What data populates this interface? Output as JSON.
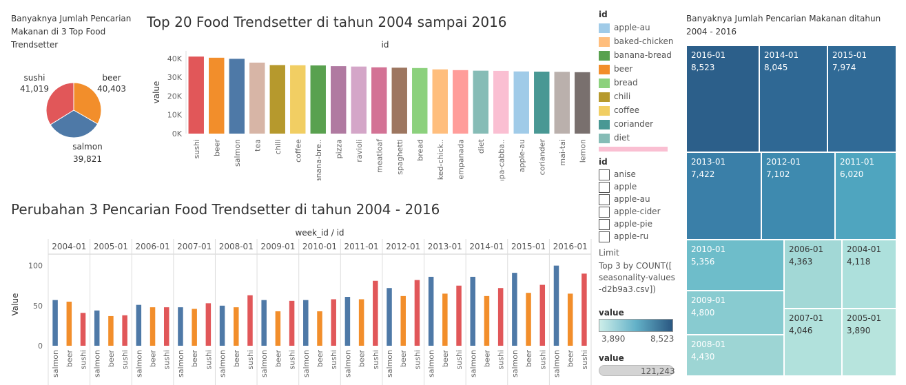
{
  "pie_title": "Banyaknya Jumlah Pencarian Makanan di 3 Top Food Trendsetter",
  "bar_title": "Top 20 Food Trendsetter di tahun 2004 sampai 2016",
  "grouped_title": "Perubahan 3 Pencarian Food Trendsetter di tahun 2004 - 2016",
  "treemap_title": "Banyaknya Jumlah Pencarian Makanan ditahun 2004 - 2016",
  "colors": {
    "salmon": "#4e79a7",
    "beer": "#f28e2b",
    "sushi": "#e15759"
  },
  "legend": {
    "title": "id",
    "items": [
      {
        "label": "apple-au",
        "color": "#a0cbe8"
      },
      {
        "label": "baked-chicken",
        "color": "#ffbe7d"
      },
      {
        "label": "banana-bread",
        "color": "#59a14f"
      },
      {
        "label": "beer",
        "color": "#f28e2b"
      },
      {
        "label": "bread",
        "color": "#8cd17d"
      },
      {
        "label": "chili",
        "color": "#b6992d"
      },
      {
        "label": "coffee",
        "color": "#f1ce63"
      },
      {
        "label": "coriander",
        "color": "#499894"
      },
      {
        "label": "diet",
        "color": "#86bcb6"
      }
    ]
  },
  "filter": {
    "title": "id",
    "items": [
      "anise",
      "apple",
      "apple-au",
      "apple-cider",
      "apple-pie",
      "apple-ru"
    ]
  },
  "limit": {
    "label": "Limit",
    "text": "Top 3 by COUNT([ seasonality-values-d2b9a3.csv])"
  },
  "value_legend": {
    "title": "value",
    "min": "3,890",
    "max": "8,523"
  },
  "value_slider": {
    "title": "value",
    "value": "121,243"
  },
  "chart_data": [
    {
      "type": "pie",
      "slices": [
        {
          "label": "sushi",
          "value": 41019,
          "display": "41,019",
          "color": "#e15759"
        },
        {
          "label": "beer",
          "value": 40403,
          "display": "40,403",
          "color": "#f28e2b"
        },
        {
          "label": "salmon",
          "value": 39821,
          "display": "39,821",
          "color": "#4e79a7"
        }
      ]
    },
    {
      "type": "bar",
      "xlabel": "id",
      "ylabel": "value",
      "ylim": [
        0,
        40000
      ],
      "yticks": [
        0,
        10000,
        20000,
        30000,
        40000
      ],
      "ytick_labels": [
        "0K",
        "10K",
        "20K",
        "30K",
        "40K"
      ],
      "categories": [
        "sushi",
        "beer",
        "salmon",
        "tea",
        "chili",
        "coffee",
        "banana-bre..",
        "pizza",
        "ravioli",
        "meatloaf",
        "spaghetti",
        "bread",
        "baked-chick..",
        "empanada",
        "diet",
        "napa-cabba..",
        "apple-au",
        "coriander",
        "mai-tai",
        "lemon"
      ],
      "values": [
        41019,
        40403,
        39821,
        37800,
        36500,
        36400,
        36300,
        35900,
        35700,
        35300,
        35100,
        34900,
        34200,
        33800,
        33500,
        33400,
        33100,
        33000,
        32900,
        32700
      ],
      "colors": [
        "#e15759",
        "#f28e2b",
        "#4e79a7",
        "#d7b5a6",
        "#b6992d",
        "#f1ce63",
        "#59a14f",
        "#b07aa1",
        "#d4a6c8",
        "#d37295",
        "#9d7660",
        "#8cd17d",
        "#ffbe7d",
        "#ff9d9a",
        "#86bcb6",
        "#fabfd2",
        "#a0cbe8",
        "#499894",
        "#bab0ac",
        "#79706e"
      ]
    },
    {
      "type": "bar",
      "header": "week_id / id",
      "ylabel": "Value",
      "ylim": [
        0,
        110
      ],
      "yticks": [
        0,
        50,
        100
      ],
      "groups": [
        "2004-01",
        "2005-01",
        "2006-01",
        "2007-01",
        "2008-01",
        "2009-01",
        "2010-01",
        "2011-01",
        "2012-01",
        "2013-01",
        "2014-01",
        "2015-01",
        "2016-01"
      ],
      "series_labels": [
        "salmon",
        "beer",
        "sushi"
      ],
      "series": [
        {
          "name": "salmon",
          "values": [
            57,
            44,
            51,
            48,
            50,
            57,
            57,
            61,
            72,
            86,
            86,
            91,
            100
          ]
        },
        {
          "name": "beer",
          "values": [
            55,
            37,
            48,
            46,
            48,
            43,
            43,
            58,
            62,
            65,
            62,
            66,
            65
          ]
        },
        {
          "name": "sushi",
          "values": [
            41,
            38,
            48,
            53,
            63,
            56,
            58,
            81,
            82,
            75,
            72,
            76,
            90
          ]
        }
      ]
    },
    {
      "type": "treemap",
      "cells": [
        {
          "label": "2016-01",
          "value": 8523,
          "display": "8,523",
          "color": "#2c5f8a"
        },
        {
          "label": "2014-01",
          "value": 8045,
          "display": "8,045",
          "color": "#2f6894"
        },
        {
          "label": "2015-01",
          "value": 7974,
          "display": "7,974",
          "color": "#306a96"
        },
        {
          "label": "2013-01",
          "value": 7422,
          "display": "7,422",
          "color": "#3a7fa8"
        },
        {
          "label": "2012-01",
          "value": 7102,
          "display": "7,102",
          "color": "#3e8aaf"
        },
        {
          "label": "2011-01",
          "value": 6020,
          "display": "6,020",
          "color": "#4fa5bf"
        },
        {
          "label": "2010-01",
          "value": 5356,
          "display": "5,356",
          "color": "#6ebdca"
        },
        {
          "label": "2006-01",
          "value": 4363,
          "display": "4,363",
          "color": "#a2d8d6"
        },
        {
          "label": "2004-01",
          "value": 4118,
          "display": "4,118",
          "color": "#ade0dc"
        },
        {
          "label": "2009-01",
          "value": 4800,
          "display": "4,800",
          "color": "#88cbd0"
        },
        {
          "label": "2007-01",
          "value": 4046,
          "display": "4,046",
          "color": "#b1e1dc"
        },
        {
          "label": "2005-01",
          "value": 3890,
          "display": "3,890",
          "color": "#b7e4dd"
        },
        {
          "label": "2008-01",
          "value": 4430,
          "display": "4,430",
          "color": "#9dd5d4"
        }
      ]
    }
  ]
}
